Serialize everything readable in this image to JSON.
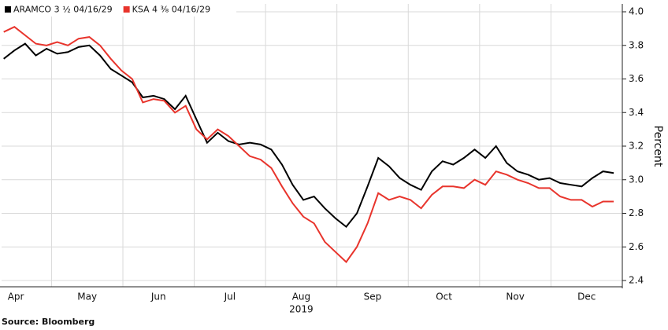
{
  "chart_data": {
    "type": "line",
    "x": [
      4.33,
      4.48,
      4.63,
      4.78,
      4.93,
      5.08,
      5.23,
      5.38,
      5.53,
      5.68,
      5.83,
      5.98,
      6.13,
      6.28,
      6.43,
      6.58,
      6.73,
      6.88,
      7.03,
      7.18,
      7.33,
      7.48,
      7.63,
      7.78,
      7.93,
      8.08,
      8.23,
      8.38,
      8.53,
      8.68,
      8.83,
      8.98,
      9.13,
      9.28,
      9.43,
      9.58,
      9.73,
      9.88,
      10.03,
      10.18,
      10.33,
      10.48,
      10.63,
      10.78,
      10.93,
      11.08,
      11.23,
      11.38,
      11.53,
      11.68,
      11.83,
      11.98,
      12.13,
      12.28,
      12.43,
      12.58,
      12.73,
      12.88
    ],
    "series": [
      {
        "name": "ARAMCO 3 ½ 04/16/29",
        "color": "#000000",
        "values": [
          3.72,
          3.77,
          3.81,
          3.74,
          3.78,
          3.75,
          3.76,
          3.79,
          3.8,
          3.74,
          3.66,
          3.62,
          3.58,
          3.49,
          3.5,
          3.48,
          3.42,
          3.5,
          3.36,
          3.22,
          3.28,
          3.23,
          3.21,
          3.22,
          3.21,
          3.18,
          3.09,
          2.97,
          2.88,
          2.9,
          2.83,
          2.77,
          2.72,
          2.8,
          2.96,
          3.13,
          3.08,
          3.01,
          2.97,
          2.94,
          3.05,
          3.11,
          3.09,
          3.13,
          3.18,
          3.13,
          3.2,
          3.1,
          3.05,
          3.03,
          3.0,
          3.01,
          2.98,
          2.97,
          2.96,
          3.01,
          3.05,
          3.04
        ]
      },
      {
        "name": "KSA 4 ⅜ 04/16/29",
        "color": "#e8342c",
        "values": [
          3.88,
          3.91,
          3.86,
          3.81,
          3.8,
          3.82,
          3.8,
          3.84,
          3.85,
          3.8,
          3.72,
          3.65,
          3.6,
          3.46,
          3.48,
          3.47,
          3.4,
          3.44,
          3.3,
          3.24,
          3.3,
          3.26,
          3.2,
          3.14,
          3.12,
          3.07,
          2.96,
          2.86,
          2.78,
          2.74,
          2.63,
          2.57,
          2.51,
          2.6,
          2.74,
          2.92,
          2.88,
          2.9,
          2.88,
          2.83,
          2.91,
          2.96,
          2.96,
          2.95,
          3.0,
          2.97,
          3.05,
          3.03,
          3.0,
          2.98,
          2.95,
          2.95,
          2.9,
          2.88,
          2.88,
          2.84,
          2.87,
          2.87
        ]
      }
    ],
    "xlim": [
      4.3,
      13.0
    ],
    "xticks": [
      {
        "value": 4.5,
        "label": "Apr"
      },
      {
        "value": 5.5,
        "label": "May"
      },
      {
        "value": 6.5,
        "label": "Jun"
      },
      {
        "value": 7.5,
        "label": "Jul"
      },
      {
        "value": 8.5,
        "label": "Aug"
      },
      {
        "value": 9.5,
        "label": "Sep"
      },
      {
        "value": 10.5,
        "label": "Oct"
      },
      {
        "value": 11.5,
        "label": "Nov"
      },
      {
        "value": 12.5,
        "label": "Dec"
      }
    ],
    "xgrid": [
      5,
      6,
      7,
      8,
      9,
      10,
      11,
      12
    ],
    "year_label": "2019",
    "ylim": [
      2.4,
      4.0
    ],
    "yticks": [
      2.4,
      2.6,
      2.8,
      {
        "value": 3,
        "label": "3.0"
      },
      3.2,
      3.4,
      3.6,
      3.8,
      {
        "value": 4,
        "label": "4.0"
      }
    ],
    "y_label": "Percent",
    "grid": true,
    "legend": "top-left",
    "source": "Source: Bloomberg"
  }
}
